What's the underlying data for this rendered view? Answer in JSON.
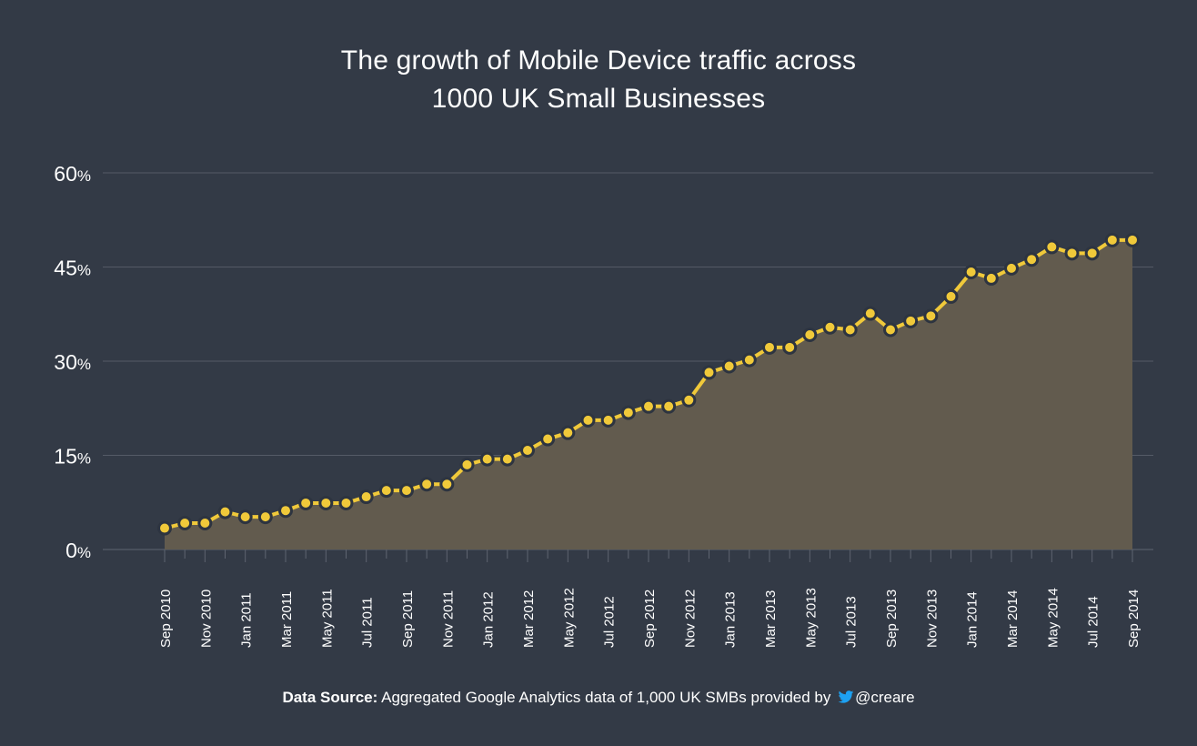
{
  "chart_data": {
    "type": "area",
    "title_line1": "The growth of Mobile Device traffic across",
    "title_line2": "1000 UK Small Businesses",
    "xlabel": "",
    "ylabel": "",
    "ylim": [
      0,
      60
    ],
    "yticks": [
      {
        "value": 0,
        "label": "0",
        "unit": "%"
      },
      {
        "value": 15,
        "label": "15",
        "unit": "%"
      },
      {
        "value": 30,
        "label": "30",
        "unit": "%"
      },
      {
        "value": 45,
        "label": "45",
        "unit": "%"
      },
      {
        "value": 60,
        "label": "60",
        "unit": "%"
      }
    ],
    "grid": true,
    "x": [
      "Sep 2010",
      "Oct 2010",
      "Nov 2010",
      "Dec 2010",
      "Jan 2011",
      "Feb 2011",
      "Mar 2011",
      "Apr 2011",
      "May 2011",
      "Jun 2011",
      "Jul 2011",
      "Aug 2011",
      "Sep 2011",
      "Oct 2011",
      "Nov 2011",
      "Dec 2011",
      "Jan 2012",
      "Feb 2012",
      "Mar 2012",
      "Apr 2012",
      "May 2012",
      "Jun 2012",
      "Jul 2012",
      "Aug 2012",
      "Sep 2012",
      "Oct 2012",
      "Nov 2012",
      "Dec 2012",
      "Jan 2013",
      "Feb 2013",
      "Mar 2013",
      "Apr 2013",
      "May 2013",
      "Jun 2013",
      "Jul 2013",
      "Aug 2013",
      "Sep 2013",
      "Oct 2013",
      "Nov 2013",
      "Dec 2013",
      "Jan 2014",
      "Feb 2014",
      "Mar 2014",
      "Apr 2014",
      "May 2014",
      "Jun 2014",
      "Jul 2014",
      "Aug 2014",
      "Sep 2014"
    ],
    "tick_labels": [
      "Sep 2010",
      "Nov 2010",
      "Jan 2011",
      "Mar 2011",
      "May 2011",
      "Jul 2011",
      "Sep 2011",
      "Nov 2011",
      "Jan 2012",
      "Mar 2012",
      "May 2012",
      "Jul 2012",
      "Sep 2012",
      "Nov 2012",
      "Jan 2013",
      "Mar 2013",
      "May 2013",
      "Jul 2013",
      "Sep 2013",
      "Nov 2013",
      "Jan 2014",
      "Mar 2014",
      "May 2014",
      "Jul 2014",
      "Sep 2014"
    ],
    "series": [
      {
        "values": [
          3.4,
          4.2,
          4.2,
          6.0,
          5.2,
          5.2,
          6.2,
          7.4,
          7.4,
          7.4,
          8.4,
          9.4,
          9.4,
          10.4,
          10.4,
          13.5,
          14.4,
          14.4,
          15.8,
          17.6,
          18.6,
          20.6,
          20.6,
          21.8,
          22.8,
          22.8,
          23.8,
          28.2,
          29.2,
          30.2,
          32.2,
          32.2,
          34.2,
          35.4,
          35.0,
          37.6,
          35.0,
          36.4,
          37.2,
          40.3,
          44.2,
          43.2,
          44.8,
          46.2,
          48.2,
          47.2,
          47.2,
          49.3,
          49.3
        ]
      }
    ],
    "colors": {
      "background": "#333a46",
      "grid": "#545a66",
      "area": "#625b4e",
      "line": "#f0c93a",
      "point_stroke": "#2d3440",
      "axis": "#5e6470"
    }
  },
  "footer": {
    "source_label": "Data Source:",
    "source_text": "Aggregated Google Analytics data of 1,000 UK SMBs provided by",
    "handle": "@creare",
    "icon": "twitter-bird-icon"
  }
}
